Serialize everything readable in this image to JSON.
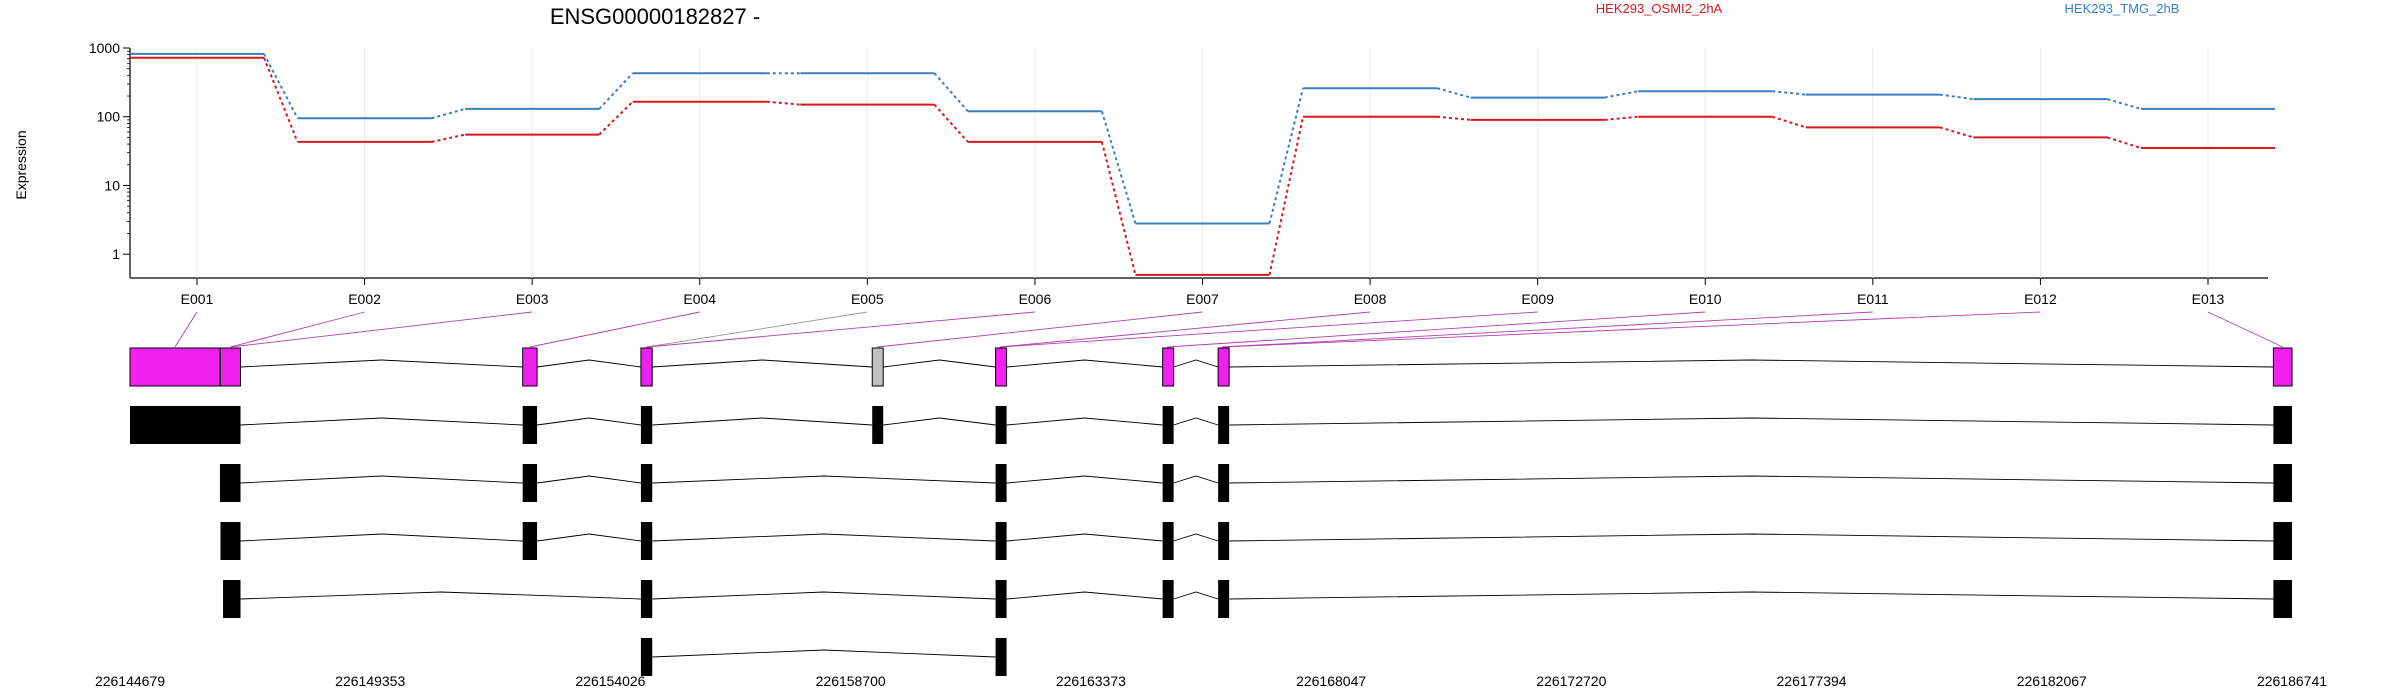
{
  "chart_data": {
    "type": "line",
    "title": "ENSG00000182827 -",
    "ylabel": "Expression",
    "yscale": "log",
    "ylim": [
      0.45,
      1000
    ],
    "yticks": [
      "1000",
      "100",
      "10",
      "1"
    ],
    "categories": [
      "E001",
      "E002",
      "E003",
      "E004",
      "E005",
      "E006",
      "E007",
      "E008",
      "E009",
      "E010",
      "E011",
      "E012",
      "E013"
    ],
    "series": [
      {
        "name": "HEK293_OSMI2_2hA",
        "color": "#d7191c",
        "values": [
          720,
          43,
          55,
          165,
          150,
          43,
          0.5,
          100,
          90,
          100,
          70,
          50,
          35
        ]
      },
      {
        "name": "HEK293_TMG_2hB",
        "color": "#3a7fc4",
        "values": [
          820,
          95,
          130,
          430,
          430,
          120,
          2.8,
          260,
          190,
          235,
          210,
          180,
          130
        ]
      }
    ],
    "exon_colors": [
      "#f020f0",
      "#f020f0",
      "#f020f0",
      "#f020f0",
      "#c0c0c0",
      "#f020f0",
      "#f020f0",
      "#f020f0",
      "#f020f0",
      "#f020f0",
      "#f020f0",
      "#f020f0",
      "#f020f0"
    ],
    "genomic_axis": {
      "start": 226144679,
      "end": 226186741,
      "tick_labels": [
        "226144679",
        "226149353",
        "226154026",
        "226158700",
        "226163373",
        "226168047",
        "226172720",
        "226177394",
        "226182067",
        "226186741"
      ]
    },
    "exons": [
      {
        "id": "E001",
        "start": 226144679,
        "end": 226146429
      },
      {
        "id": "E002",
        "start": 226146439,
        "end": 226146829
      },
      {
        "id": "E003",
        "start": 226152319,
        "end": 226152599
      },
      {
        "id": "E004",
        "start": 226154619,
        "end": 226154839
      },
      {
        "id": "E005",
        "start": 226159119,
        "end": 226159319
      },
      {
        "id": "E006",
        "start": 226161519,
        "end": 226161679
      },
      {
        "id": "E007",
        "start": 226164769,
        "end": 226164939
      },
      {
        "id": "E008",
        "start": 226165849,
        "end": 226166009
      },
      {
        "id": "E009",
        "start": 226186379,
        "end": 226186741
      }
    ],
    "transcripts": [
      {
        "exons": [
          [
            226144679,
            226146829
          ],
          [
            226152319,
            226152599
          ],
          [
            226154619,
            226154839
          ],
          [
            226159119,
            226159319
          ],
          [
            226161519,
            226161679
          ],
          [
            226164769,
            226164939
          ],
          [
            226165849,
            226166009
          ],
          [
            226186379,
            226186741
          ]
        ]
      },
      {
        "exons": [
          [
            226146429,
            226146829
          ],
          [
            226152319,
            226152599
          ],
          [
            226154619,
            226154839
          ],
          [
            226161519,
            226161679
          ],
          [
            226164769,
            226164939
          ],
          [
            226165849,
            226166009
          ],
          [
            226186379,
            226186741
          ]
        ]
      },
      {
        "exons": [
          [
            226146439,
            226146829
          ],
          [
            226152319,
            226152599
          ],
          [
            226154619,
            226154839
          ],
          [
            226161519,
            226161679
          ],
          [
            226164769,
            226164939
          ],
          [
            226165849,
            226166009
          ],
          [
            226186379,
            226186741
          ]
        ]
      },
      {
        "exons": [
          [
            226146489,
            226146829
          ],
          [
            226154619,
            226154839
          ],
          [
            226161519,
            226161679
          ],
          [
            226164769,
            226164939
          ],
          [
            226165849,
            226166009
          ],
          [
            226186379,
            226186741
          ]
        ]
      },
      {
        "exons": [
          [
            226154619,
            226154839
          ],
          [
            226161519,
            226161679
          ]
        ]
      }
    ],
    "grid": true,
    "legend_position": "top-right"
  }
}
